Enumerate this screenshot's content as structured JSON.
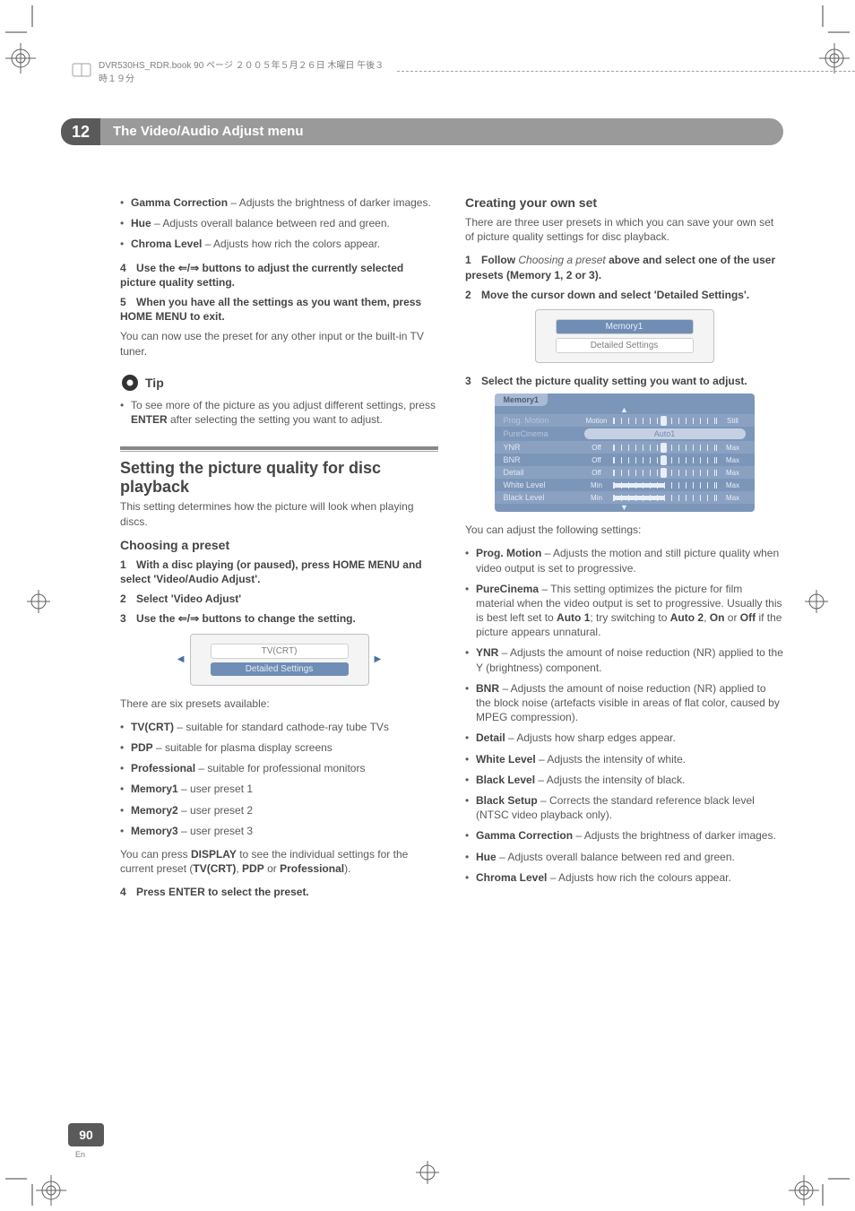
{
  "header": {
    "text": "DVR530HS_RDR.book 90 ページ ２００５年５月２６日 木曜日 午後３時１９分"
  },
  "chapter": {
    "num": "12",
    "title": "The Video/Audio Adjust menu"
  },
  "left": {
    "opening_bullets": [
      {
        "term": "Gamma Correction",
        "desc": " – Adjusts the brightness of darker images."
      },
      {
        "term": "Hue",
        "desc": " – Adjusts overall balance between red and green."
      },
      {
        "term": "Chroma Level",
        "desc": " – Adjusts how rich the colors appear."
      }
    ],
    "step4": {
      "num": "4",
      "pre": "Use the ",
      "arrows": "⇐/⇒",
      "post": " buttons to adjust the currently selected picture quality setting."
    },
    "step5": {
      "num": "5",
      "text": "When you have all the settings as you want them, press HOME MENU to exit."
    },
    "step5_para": "You can now use the preset for any other input or the built-in TV tuner.",
    "tip_label": "Tip",
    "tip_text_a": "To see more of the picture as you adjust different settings, press ",
    "tip_text_b": "ENTER",
    "tip_text_c": " after selecting the setting you want to adjust.",
    "h2": "Setting the picture quality for disc playback",
    "h2_para": "This setting determines how the picture will look when playing discs.",
    "h3": "Choosing a preset",
    "cp_step1": {
      "num": "1",
      "text": "With a disc playing (or paused), press HOME MENU and select 'Video/Audio Adjust'."
    },
    "cp_step2": {
      "num": "2",
      "text": "Select 'Video Adjust'"
    },
    "cp_step3": {
      "num": "3",
      "pre": "Use the ",
      "arrows": "⇐/⇒",
      "post": " buttons to change the setting."
    },
    "shot1": {
      "line1": "TV(CRT)",
      "line2": "Detailed Settings"
    },
    "presets_intro": "There are six presets available:",
    "presets": [
      {
        "term": "TV(CRT)",
        "desc": " – suitable for standard cathode-ray tube TVs"
      },
      {
        "term": "PDP",
        "desc": " – suitable for plasma display screens"
      },
      {
        "term": "Professional",
        "desc": " – suitable for professional monitors"
      },
      {
        "term": "Memory1",
        "desc": " – user preset 1"
      },
      {
        "term": "Memory2",
        "desc": " – user preset 2"
      },
      {
        "term": "Memory3",
        "desc": " – user preset 3"
      }
    ],
    "display_a": "You can press ",
    "display_b": "DISPLAY",
    "display_c": " to see the individual settings for the current preset (",
    "display_d": "TV(CRT)",
    "display_e": ", ",
    "display_f": "PDP",
    "display_g": " or ",
    "display_h": "Professional",
    "display_i": ").",
    "cp_step4": {
      "num": "4",
      "text": "Press ENTER to select the preset."
    }
  },
  "right": {
    "h3_create": "Creating your own set",
    "create_para": "There are three user presets in which you can save your own set of picture quality settings for disc playback.",
    "c_step1": {
      "num": "1",
      "pre": "Follow ",
      "em": "Choosing a preset",
      "post": " above and select one of the user presets (Memory 1, 2 or 3)."
    },
    "c_step2": {
      "num": "2",
      "text": "Move the cursor down and select 'Detailed Settings'."
    },
    "shot1b": {
      "line1": "Memory1",
      "line2": "Detailed Settings"
    },
    "c_step3": {
      "num": "3",
      "text": "Select the picture quality setting you want to adjust."
    },
    "shot2": {
      "tab": "Memory1",
      "rows": [
        {
          "label": "Prog. Motion",
          "left": "Motion",
          "right": "Still",
          "knob": 0.5,
          "dim": true,
          "type": "ticks"
        },
        {
          "label": "PureCinema",
          "pill": "Auto1",
          "dim": true,
          "type": "pill"
        },
        {
          "label": "YNR",
          "left": "Off",
          "right": "Max",
          "knob": 0.5,
          "type": "ticks"
        },
        {
          "label": "BNR",
          "left": "Off",
          "right": "Max",
          "knob": 0.5,
          "type": "ticks"
        },
        {
          "label": "Detail",
          "left": "Off",
          "right": "Max",
          "knob": 0.5,
          "type": "ticks"
        },
        {
          "label": "White Level",
          "left": "Min",
          "right": "Max",
          "fill": 0.5,
          "type": "fill"
        },
        {
          "label": "Black Level",
          "left": "Min",
          "right": "Max",
          "fill": 0.5,
          "type": "fill"
        }
      ]
    },
    "adjust_intro": "You can adjust the following settings:",
    "adjust": [
      {
        "term": "Prog. Motion",
        "desc": " – Adjusts the motion and still picture quality when video output is set to progressive."
      },
      {
        "term": "PureCinema",
        "desc": " – This setting optimizes the picture for film material when the video output is set to progressive. Usually this is best left set to ",
        "b1": "Auto 1",
        "mid": "; try switching to ",
        "b2": "Auto 2",
        "mid2": ", ",
        "b3": "On",
        "mid3": " or ",
        "b4": "Off",
        "tail": " if the picture appears unnatural."
      },
      {
        "term": "YNR",
        "desc": " – Adjusts the amount of noise reduction (NR) applied to the Y (brightness) component."
      },
      {
        "term": "BNR",
        "desc": " – Adjusts the amount of noise reduction (NR) applied to the block noise (artefacts visible in areas of flat color, caused by MPEG compression)."
      },
      {
        "term": "Detail",
        "desc": " – Adjusts how sharp edges appear."
      },
      {
        "term": "White Level",
        "desc": " – Adjusts the intensity of white."
      },
      {
        "term": "Black Level",
        "desc": " – Adjusts the intensity of black."
      },
      {
        "term": "Black Setup",
        "desc": " – Corrects the standard reference black level (NTSC video playback only)."
      },
      {
        "term": "Gamma Correction",
        "desc": " – Adjusts the brightness of darker images."
      },
      {
        "term": "Hue",
        "desc": " – Adjusts overall balance between red and green."
      },
      {
        "term": "Chroma Level",
        "desc": " – Adjusts how rich the colours appear."
      }
    ]
  },
  "footer": {
    "page": "90",
    "lang": "En"
  },
  "colors": {
    "corner": "#404040",
    "registration": "#606060"
  }
}
